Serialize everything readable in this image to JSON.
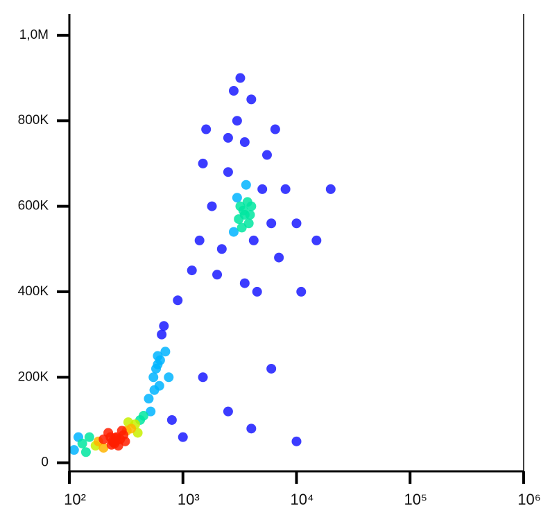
{
  "chart_data": {
    "type": "density-scatter",
    "x_scale": "log",
    "xlim": [
      100,
      1000000
    ],
    "ylim": [
      -20000,
      1050000
    ],
    "xticks": [
      {
        "value": 100,
        "label": "10²"
      },
      {
        "value": 1000,
        "label": "10³"
      },
      {
        "value": 10000,
        "label": "10⁴"
      },
      {
        "value": 100000,
        "label": "10⁵"
      },
      {
        "value": 1000000,
        "label": "10⁶"
      }
    ],
    "yticks": [
      0,
      {
        "value": 200000,
        "label": "200K"
      },
      {
        "value": 400000,
        "label": "400K"
      },
      {
        "value": 600000,
        "label": "600K"
      },
      {
        "value": 800000,
        "label": "800K"
      },
      {
        "value": 1000000,
        "label": "1,0M"
      }
    ],
    "colormap": [
      "#1a1aff",
      "#00b4ff",
      "#00e6a0",
      "#c8f000",
      "#ffb400",
      "#ff1e00"
    ],
    "x": [
      110,
      130,
      150,
      170,
      200,
      220,
      240,
      250,
      260,
      280,
      300,
      320,
      350,
      380,
      400,
      420,
      200,
      180,
      230,
      270,
      290,
      310,
      260,
      245,
      255,
      235,
      140,
      120,
      450,
      330,
      500,
      550,
      600,
      650,
      580,
      620,
      700,
      680,
      520,
      750,
      600,
      630,
      560,
      3500,
      3200,
      3800,
      3000,
      4000,
      3300,
      3600,
      2800,
      4200,
      2500,
      5000,
      2200,
      6000,
      1800,
      3500,
      3000,
      4000,
      2500,
      5500,
      7000,
      1500,
      1400,
      3500,
      4500,
      2000,
      8000,
      10000,
      3200,
      2800,
      6500,
      1600,
      3700,
      3400,
      3100,
      3900,
      1200,
      900,
      15000,
      20000,
      1500,
      2500,
      10000,
      4000,
      6000,
      11000,
      800,
      1000
    ],
    "y": [
      30000,
      45000,
      60000,
      40000,
      55000,
      70000,
      50000,
      45000,
      60000,
      55000,
      65000,
      75000,
      80000,
      90000,
      70000,
      100000,
      35000,
      50000,
      60000,
      40000,
      75000,
      50000,
      52000,
      48000,
      58000,
      42000,
      25000,
      60000,
      110000,
      95000,
      150000,
      200000,
      250000,
      300000,
      220000,
      180000,
      260000,
      320000,
      120000,
      200000,
      230000,
      240000,
      170000,
      580000,
      600000,
      560000,
      620000,
      600000,
      550000,
      650000,
      540000,
      520000,
      680000,
      640000,
      500000,
      560000,
      600000,
      750000,
      800000,
      850000,
      760000,
      720000,
      480000,
      700000,
      520000,
      420000,
      400000,
      440000,
      640000,
      560000,
      900000,
      870000,
      780000,
      780000,
      610000,
      590000,
      570000,
      580000,
      450000,
      380000,
      520000,
      640000,
      200000,
      120000,
      50000,
      80000,
      220000,
      400000,
      100000,
      60000
    ]
  }
}
